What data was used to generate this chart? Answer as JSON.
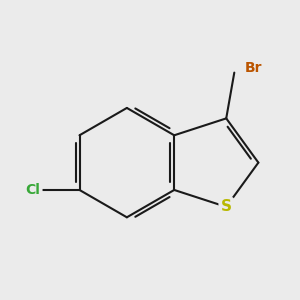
{
  "background_color": "#ebebeb",
  "bond_color": "#1a1a1a",
  "bond_width": 1.5,
  "S_color": "#b8b800",
  "Cl_color": "#38a838",
  "Br_color": "#bb5500",
  "font_size_S": 11,
  "font_size_Cl": 10,
  "font_size_Br": 10,
  "label_S": "S",
  "label_Cl": "Cl",
  "label_Br": "Br",
  "xlim": [
    -3.5,
    3.5
  ],
  "ylim": [
    -3.5,
    3.5
  ]
}
